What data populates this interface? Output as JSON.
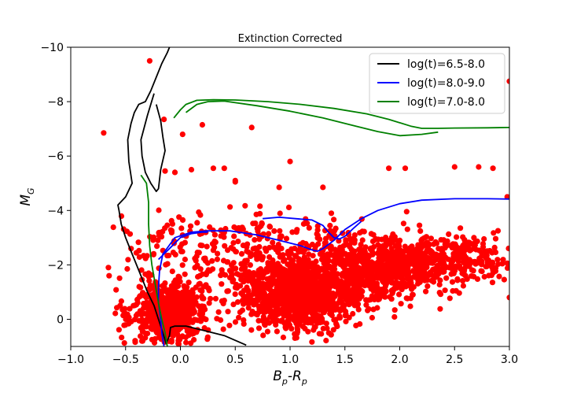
{
  "chart_data": {
    "type": "scatter",
    "title": "Extinction Corrected",
    "xlabel": "B_p-R_p",
    "ylabel": "M_G",
    "xlim": [
      -1.0,
      3.0
    ],
    "ylim": [
      0.999,
      -10.0
    ],
    "y_inverted": true,
    "x_ticks": [
      -1.0,
      -0.5,
      0.0,
      0.5,
      1.0,
      1.5,
      2.0,
      2.5,
      3.0
    ],
    "x_tick_labels": [
      "−1.0",
      "−0.5",
      "0.0",
      "0.5",
      "1.0",
      "1.5",
      "2.0",
      "2.5",
      "3.0"
    ],
    "y_ticks": [
      0,
      -2,
      -4,
      -6,
      -8,
      -10
    ],
    "y_tick_labels": [
      "0",
      "−2",
      "−4",
      "−6",
      "−8",
      "−10"
    ],
    "grid": false,
    "legend_position": "top-right",
    "scatter_color": "#ff0000",
    "scatter": {
      "name": "",
      "clusters": [
        {
          "center": [
            -0.1,
            -0.2
          ],
          "spread": [
            0.17,
            0.55
          ],
          "count": 650
        },
        {
          "center": [
            1.1,
            -1.0
          ],
          "spread": [
            0.27,
            0.65
          ],
          "count": 1300
        },
        {
          "center": [
            1.8,
            -1.9
          ],
          "spread": [
            0.3,
            0.55
          ],
          "count": 750
        },
        {
          "center": [
            2.5,
            -2.2
          ],
          "spread": [
            0.28,
            0.45
          ],
          "count": 260
        },
        {
          "center": [
            0.3,
            -2.2
          ],
          "spread": [
            0.45,
            0.8
          ],
          "count": 230
        },
        {
          "center": [
            1.0,
            -3.2
          ],
          "spread": [
            0.5,
            0.35
          ],
          "count": 80
        }
      ],
      "points": [
        [
          -0.28,
          -9.5
        ],
        [
          -0.7,
          -6.85
        ],
        [
          -0.15,
          -7.35
        ],
        [
          0.02,
          -6.8
        ],
        [
          0.2,
          -7.15
        ],
        [
          0.65,
          -7.05
        ],
        [
          1.0,
          -5.8
        ],
        [
          0.3,
          -5.55
        ],
        [
          0.4,
          -5.55
        ],
        [
          0.1,
          -5.5
        ],
        [
          -0.14,
          -5.45
        ],
        [
          -0.05,
          -5.4
        ],
        [
          0.5,
          -5.1
        ],
        [
          1.9,
          -5.55
        ],
        [
          2.05,
          -5.55
        ],
        [
          2.5,
          -5.6
        ],
        [
          2.72,
          -5.6
        ],
        [
          2.85,
          -5.55
        ],
        [
          3.0,
          -8.75
        ],
        [
          2.98,
          -4.5
        ],
        [
          1.3,
          -4.85
        ],
        [
          0.9,
          -4.85
        ],
        [
          0.5,
          -5.05
        ],
        [
          3.0,
          -0.8
        ],
        [
          2.1,
          -1.4
        ],
        [
          2.6,
          -1.6
        ],
        [
          2.85,
          -1.8
        ],
        [
          -0.45,
          -2.6
        ],
        [
          -0.55,
          -0.5
        ],
        [
          -0.65,
          -1.6
        ]
      ]
    },
    "series": [
      {
        "name": "log(t)=6.5-8.0",
        "color": "#000000",
        "x": [
          0.6,
          0.4,
          0.2,
          0.05,
          -0.05,
          -0.09,
          -0.1,
          -0.13,
          -0.16,
          -0.2,
          -0.24,
          -0.3,
          -0.35,
          -0.4,
          -0.45,
          -0.5,
          -0.54,
          -0.56,
          -0.57,
          -0.5,
          -0.44,
          -0.47,
          -0.48,
          -0.45,
          -0.42,
          -0.38,
          -0.32,
          -0.27,
          -0.22,
          -0.17,
          -0.12,
          -0.1
        ],
        "y": [
          0.95,
          0.6,
          0.4,
          0.25,
          0.25,
          0.3,
          0.6,
          0.9,
          0.5,
          0.0,
          -0.5,
          -1.0,
          -1.5,
          -2.0,
          -2.5,
          -3.0,
          -3.5,
          -4.0,
          -4.2,
          -4.5,
          -5.0,
          -5.8,
          -6.6,
          -7.2,
          -7.6,
          -7.9,
          -8.0,
          -8.4,
          -8.9,
          -9.4,
          -9.8,
          -10.0
        ],
        "segments": [
          {
            "x": [
              -0.24,
              -0.3,
              -0.36,
              -0.35,
              -0.32,
              -0.27,
              -0.22,
              -0.2,
              -0.18,
              -0.14,
              -0.16,
              -0.18,
              -0.22
            ],
            "y": [
              -8.3,
              -7.5,
              -6.6,
              -6.0,
              -5.4,
              -5.0,
              -4.7,
              -4.8,
              -5.5,
              -6.2,
              -6.7,
              -7.3,
              -7.9
            ]
          }
        ]
      },
      {
        "name": "log(t)=8.0-9.0",
        "color": "#0000ff",
        "x": [
          -0.15,
          -0.17,
          -0.18,
          -0.2,
          -0.2,
          -0.19,
          -0.16,
          -0.05,
          0.1,
          0.25,
          0.45,
          0.7,
          0.9,
          1.1,
          1.2,
          1.25,
          1.3,
          1.4,
          1.5,
          1.65,
          1.8,
          2.0,
          2.2,
          2.5,
          2.8,
          3.0
        ],
        "y": [
          0.99,
          0.5,
          0.0,
          -0.6,
          -1.2,
          -1.8,
          -2.4,
          -3.0,
          -3.2,
          -3.25,
          -3.25,
          -3.1,
          -2.9,
          -2.7,
          -2.55,
          -2.5,
          -2.6,
          -2.9,
          -3.3,
          -3.7,
          -4.0,
          -4.25,
          -4.38,
          -4.43,
          -4.43,
          -4.42
        ],
        "segments": [
          {
            "x": [
              0.75,
              0.9,
              1.05,
              1.2,
              1.3,
              1.35,
              1.4,
              1.45,
              1.5,
              1.58,
              1.65
            ],
            "y": [
              -3.7,
              -3.75,
              -3.7,
              -3.65,
              -3.45,
              -3.2,
              -3.0,
              -2.95,
              -3.05,
              -3.35,
              -3.6
            ]
          },
          {
            "x": [
              -0.2,
              -0.1,
              0.0,
              0.1,
              0.2,
              0.25
            ],
            "y": [
              -2.2,
              -2.6,
              -3.0,
              -3.15,
              -3.2,
              -3.2
            ]
          }
        ]
      },
      {
        "name": "log(t)=7.0-8.0",
        "color": "#008000",
        "x": [
          -0.12,
          -0.14,
          -0.17,
          -0.2,
          -0.23,
          -0.26,
          -0.28,
          -0.29,
          -0.29,
          -0.31,
          -0.36
        ],
        "y": [
          0.99,
          0.5,
          0.0,
          -0.6,
          -1.3,
          -2.0,
          -2.7,
          -3.5,
          -4.3,
          -5.0,
          -5.3
        ],
        "segments": [
          {
            "x": [
              -0.06,
              0.0,
              0.05,
              0.15,
              0.3,
              0.5,
              0.8,
              1.1,
              1.4,
              1.7,
              1.9,
              2.1,
              2.2,
              2.35,
              2.5,
              2.8,
              3.0
            ],
            "y": [
              -7.4,
              -7.7,
              -7.9,
              -8.05,
              -8.07,
              -8.06,
              -8.0,
              -7.9,
              -7.75,
              -7.55,
              -7.35,
              -7.1,
              -7.02,
              -7.02,
              -7.03,
              -7.04,
              -7.05
            ]
          },
          {
            "x": [
              0.05,
              0.15,
              0.25,
              0.4,
              0.7,
              1.0,
              1.3,
              1.6,
              1.8,
              2.0,
              2.2,
              2.35
            ],
            "y": [
              -7.6,
              -7.9,
              -8.0,
              -8.02,
              -7.85,
              -7.65,
              -7.4,
              -7.1,
              -6.9,
              -6.75,
              -6.8,
              -6.88
            ]
          }
        ]
      }
    ]
  }
}
